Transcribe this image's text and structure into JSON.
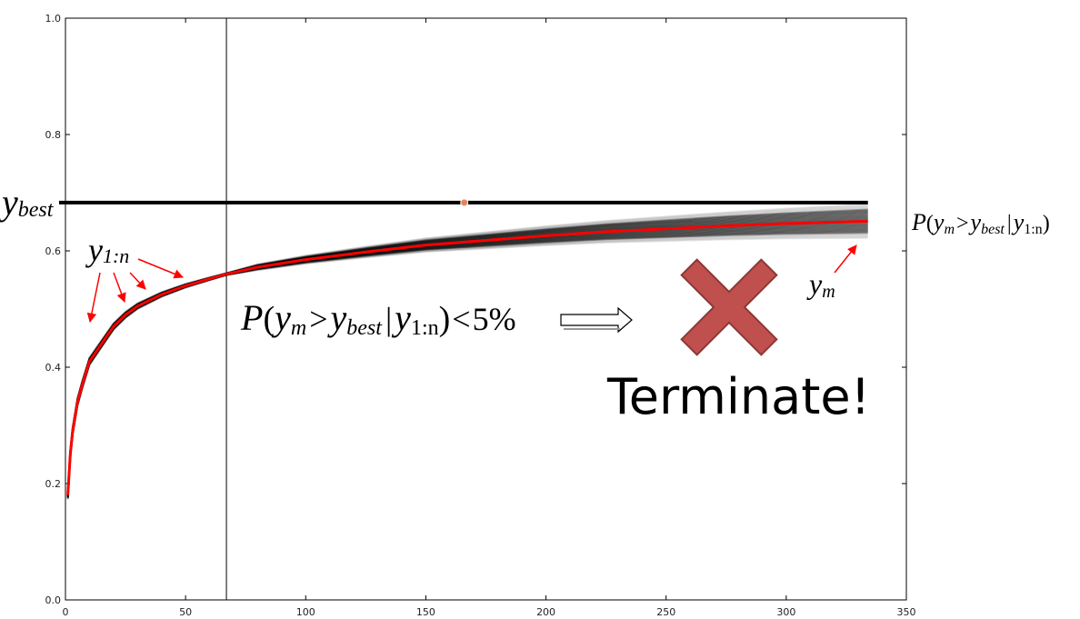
{
  "chart_data": {
    "type": "line",
    "x_ticks": [
      0,
      50,
      100,
      150,
      200,
      250,
      300,
      350
    ],
    "y_ticks": [
      0.0,
      0.2,
      0.4,
      0.6,
      0.8,
      1.0
    ],
    "xlim": [
      0,
      350
    ],
    "ylim": [
      0.0,
      1.0
    ],
    "grid": false,
    "cutoff_x": 67,
    "y_best": 0.683,
    "y_best_point_x": 166,
    "observed_curve": {
      "x": [
        1,
        2,
        3,
        5,
        7,
        10,
        15,
        20,
        25,
        30,
        40,
        50,
        60,
        67
      ],
      "y": [
        0.18,
        0.25,
        0.29,
        0.34,
        0.37,
        0.41,
        0.44,
        0.47,
        0.49,
        0.505,
        0.525,
        0.54,
        0.552,
        0.56
      ]
    },
    "predicted_curve": {
      "x": [
        67,
        80,
        100,
        125,
        150,
        175,
        200,
        225,
        250,
        275,
        300,
        334
      ],
      "y": [
        0.56,
        0.572,
        0.585,
        0.598,
        0.61,
        0.618,
        0.626,
        0.633,
        0.638,
        0.643,
        0.647,
        0.651
      ]
    },
    "band_spread_end": 0.025
  },
  "annotations": {
    "y_best": {
      "base": "y",
      "sub": "best"
    },
    "y_obs": {
      "base": "y",
      "sub": "1:n"
    },
    "y_m": {
      "base": "y",
      "sub": "m"
    },
    "prob_right": {
      "P": "P",
      "open": "(",
      "y1": "y",
      "sub1": "m",
      "gt": ">",
      "y2": "y",
      "sub2": "best",
      "bar": "|",
      "y3": "y",
      "sub3": "1:n",
      "close": ")"
    },
    "prob_main": {
      "P": "P",
      "open": "(",
      "y1": "y",
      "sub1": "m",
      "gt": ">",
      "y2": "y",
      "sub2": "best",
      "bar": "|",
      "y3": "y",
      "sub3": "1:n",
      "close": ")",
      "lt": "<",
      "pct": "5%"
    },
    "terminate": "Terminate!"
  },
  "colors": {
    "observed": "#ff0000",
    "band": "#000000",
    "axis": "#000000",
    "x_mark_fill": "#c0504d",
    "x_mark_stroke": "#8c3836",
    "best_point": "#e9835c"
  }
}
